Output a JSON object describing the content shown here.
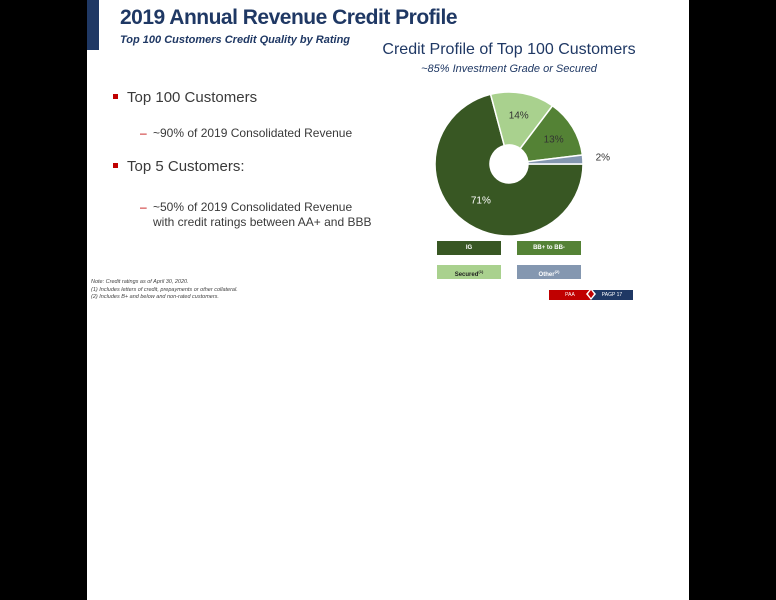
{
  "slide": {
    "title": "2019 Annual Revenue Credit Profile",
    "subtitle": "Top 100 Customers Credit Quality by Rating"
  },
  "bullets": [
    {
      "text": "Top 100 Customers",
      "sub": [
        "~90% of 2019 Consolidated Revenue"
      ]
    },
    {
      "text": "Top 5 Customers:",
      "sub": [
        "~50% of 2019 Consolidated Revenue",
        "with credit ratings between AA+ and BBB"
      ]
    }
  ],
  "notes": [
    "Note: Credit ratings as of April 30, 2020.",
    "(1)    Includes letters of credit, prepayments or other collateral.",
    "(2)    Includes B+ and below and non-rated customers."
  ],
  "legend": {
    "ig": "IG",
    "bb": "BB+ to BB-",
    "secured": "Secured",
    "secured_note": "(1)",
    "other": "Other",
    "other_note": "(2)"
  },
  "footer": {
    "left": "PAA",
    "right": "PAGP 17"
  },
  "colors": {
    "ig": "#385723",
    "bb": "#548235",
    "secured": "#a9d18e",
    "other": "#8497b0",
    "accent_red": "#c00000",
    "navy": "#1f3864"
  },
  "chart_data": {
    "type": "pie",
    "title": "Credit Profile of Top 100 Customers",
    "subtitle": "~85% Investment Grade or Secured",
    "donut": true,
    "slices": [
      {
        "name": "IG",
        "value": 71,
        "label": "71%",
        "color": "#385723"
      },
      {
        "name": "Secured",
        "value": 14,
        "label": "14%",
        "color": "#a9d18e"
      },
      {
        "name": "BB+ to BB-",
        "value": 13,
        "label": "13%",
        "color": "#548235"
      },
      {
        "name": "Other",
        "value": 2,
        "label": "2%",
        "color": "#8497b0"
      }
    ],
    "legend_position": "bottom"
  }
}
